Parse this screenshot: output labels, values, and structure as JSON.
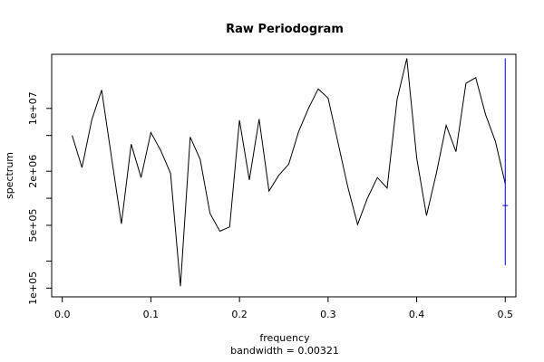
{
  "chart_data": {
    "type": "line",
    "title": "Raw Periodogram",
    "xlabel": "frequency",
    "sublabel": "bandwidth = 0.00321",
    "ylabel": "spectrum",
    "log_y": true,
    "xlim": [
      -0.012,
      0.512
    ],
    "ylim": [
      80000,
      40000000
    ],
    "x_ticks": [
      0.0,
      0.1,
      0.2,
      0.3,
      0.4,
      0.5
    ],
    "x_tick_labels": [
      "0.0",
      "0.1",
      "0.2",
      "0.3",
      "0.4",
      "0.5"
    ],
    "y_ticks": [
      100000,
      500000,
      2000000,
      10000000
    ],
    "y_tick_labels": [
      "1e+05",
      "5e+05",
      "2e+06",
      "1e+07"
    ],
    "y_minor_ticks": [
      1000000,
      5000000,
      200000
    ],
    "x": [
      0.0111,
      0.0222,
      0.0333,
      0.0444,
      0.0556,
      0.0667,
      0.0778,
      0.0889,
      0.1,
      0.1111,
      0.1222,
      0.1333,
      0.1444,
      0.1556,
      0.1667,
      0.1778,
      0.1889,
      0.2,
      0.2111,
      0.2222,
      0.2333,
      0.2444,
      0.2556,
      0.2667,
      0.2778,
      0.2889,
      0.3,
      0.3111,
      0.3222,
      0.3333,
      0.3444,
      0.3556,
      0.3667,
      0.3778,
      0.3889,
      0.4,
      0.4111,
      0.4222,
      0.4333,
      0.4444,
      0.4556,
      0.4667,
      0.4778,
      0.4889,
      0.5
    ],
    "series": [
      {
        "values": [
          5000000,
          2200000,
          7500000,
          16000000,
          2800000,
          520000,
          4000000,
          1700000,
          5400000,
          3400000,
          1900000,
          105000,
          4800000,
          2700000,
          680000,
          430000,
          480000,
          7400000,
          1600000,
          7600000,
          1200000,
          1800000,
          2400000,
          5500000,
          10000000,
          16500000,
          13000000,
          4200000,
          1350000,
          510000,
          1000000,
          1700000,
          1300000,
          12500000,
          36000000,
          2800000,
          640000,
          1900000,
          6500000,
          3300000,
          19000000,
          22000000,
          8500000,
          4300000,
          1450000
        ]
      }
    ],
    "ci_bar": {
      "x": 0.5,
      "lower": 180000,
      "upper": 36000000,
      "center": 830000
    }
  }
}
